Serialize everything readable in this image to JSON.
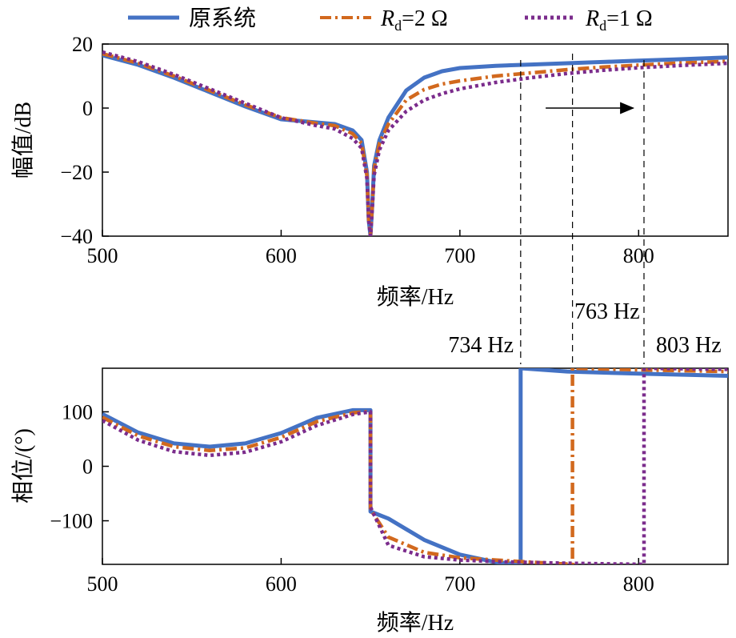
{
  "legend": [
    {
      "name": "原系统",
      "color": "#4472C4",
      "style": "solid"
    },
    {
      "name_main": "R",
      "name_sub": "d",
      "name_rest": "=2 Ω",
      "color": "#D2691E",
      "style": "dashdot"
    },
    {
      "name_main": "R",
      "name_sub": "d",
      "name_rest": "=1 Ω",
      "color": "#7B2C8C",
      "style": "dotted"
    }
  ],
  "annotations": {
    "f1": "734 Hz",
    "f2": "763 Hz",
    "f3": "803 Hz"
  },
  "chart_data": [
    {
      "type": "line",
      "name": "magnitude",
      "xlabel": "频率/Hz",
      "ylabel": "幅值/dB",
      "xlim": [
        500,
        850
      ],
      "ylim": [
        -40,
        20
      ],
      "xticks": [
        500,
        600,
        700,
        800
      ],
      "yticks": [
        -40,
        -20,
        0,
        20
      ],
      "ytick_labels": [
        "−40",
        "−20",
        "0",
        "20"
      ],
      "vlines": [
        734,
        763,
        803
      ],
      "arrow": {
        "from": [
          748,
          0
        ],
        "to": [
          797,
          0
        ]
      },
      "series": [
        {
          "name": "原系统",
          "color": "#4472C4",
          "style": "solid",
          "x": [
            500,
            520,
            540,
            560,
            580,
            600,
            620,
            630,
            640,
            645,
            648,
            649,
            650,
            651,
            652,
            655,
            660,
            670,
            680,
            690,
            700,
            720,
            740,
            760,
            780,
            800,
            820,
            850
          ],
          "y": [
            16.5,
            13.5,
            9.5,
            5,
            0.5,
            -3.5,
            -4.5,
            -5,
            -7,
            -10,
            -20,
            -35,
            -40,
            -30,
            -18,
            -10,
            -3,
            5.5,
            9.5,
            11.5,
            12.5,
            13.2,
            13.6,
            14,
            14.4,
            14.8,
            15.2,
            15.8
          ]
        },
        {
          "name": "Rd=2 Ω",
          "color": "#D2691E",
          "style": "dashdot",
          "x": [
            500,
            520,
            540,
            560,
            580,
            600,
            620,
            630,
            640,
            645,
            648,
            649,
            650,
            651,
            652,
            655,
            660,
            670,
            680,
            690,
            700,
            720,
            740,
            760,
            780,
            800,
            820,
            850
          ],
          "y": [
            17,
            14,
            10,
            5.5,
            1,
            -3,
            -4.8,
            -5.5,
            -8,
            -11,
            -21,
            -35,
            -40,
            -30,
            -19,
            -11,
            -5,
            2.5,
            5.8,
            7.5,
            8.5,
            10,
            11,
            12,
            12.8,
            13.4,
            14,
            14.6
          ]
        },
        {
          "name": "Rd=1 Ω",
          "color": "#7B2C8C",
          "style": "dotted",
          "x": [
            500,
            520,
            540,
            560,
            580,
            600,
            620,
            630,
            640,
            645,
            648,
            649,
            650,
            651,
            652,
            655,
            660,
            670,
            680,
            690,
            700,
            720,
            740,
            760,
            780,
            800,
            820,
            850
          ],
          "y": [
            17.5,
            14.5,
            10.5,
            6,
            1.5,
            -3,
            -5.5,
            -6.5,
            -9.5,
            -12.5,
            -22,
            -35,
            -40,
            -31,
            -21,
            -13,
            -7,
            -1,
            2.5,
            4.5,
            6,
            8,
            9.5,
            10.8,
            11.8,
            12.6,
            13.2,
            14
          ]
        }
      ]
    },
    {
      "type": "line",
      "name": "phase",
      "xlabel": "频率/Hz",
      "ylabel": "相位/(°)",
      "xlim": [
        500,
        850
      ],
      "ylim": [
        -180,
        180
      ],
      "xticks": [
        500,
        600,
        700,
        800
      ],
      "yticks": [
        -100,
        0,
        100
      ],
      "ytick_labels": [
        "−100",
        "0",
        "100"
      ],
      "series": [
        {
          "name": "原系统",
          "color": "#4472C4",
          "style": "solid",
          "x": [
            500,
            520,
            540,
            560,
            580,
            600,
            620,
            640,
            650,
            650,
            660,
            680,
            700,
            720,
            734,
            734,
            760,
            800,
            850
          ],
          "y": [
            96,
            62,
            42,
            36,
            42,
            61,
            89,
            103,
            103,
            -83,
            -96,
            -135,
            -162,
            -176,
            -180,
            180,
            174,
            170,
            166
          ]
        },
        {
          "name": "Rd=2 Ω",
          "color": "#D2691E",
          "style": "dashdot",
          "x": [
            500,
            520,
            540,
            560,
            580,
            600,
            620,
            640,
            650,
            650,
            660,
            680,
            700,
            720,
            740,
            763,
            763,
            800,
            850
          ],
          "y": [
            90,
            56,
            36,
            29,
            34,
            53,
            82,
            98,
            101,
            -79,
            -130,
            -158,
            -168,
            -172,
            -176,
            -180,
            180,
            177,
            174
          ]
        },
        {
          "name": "Rd=1 Ω",
          "color": "#7B2C8C",
          "style": "dotted",
          "x": [
            500,
            520,
            540,
            560,
            580,
            600,
            620,
            640,
            650,
            650,
            660,
            680,
            700,
            720,
            760,
            803,
            803,
            850
          ],
          "y": [
            84,
            48,
            27,
            20,
            26,
            45,
            75,
            95,
            100,
            -75,
            -145,
            -166,
            -172,
            -175,
            -178,
            -180,
            180,
            178
          ]
        }
      ]
    }
  ]
}
